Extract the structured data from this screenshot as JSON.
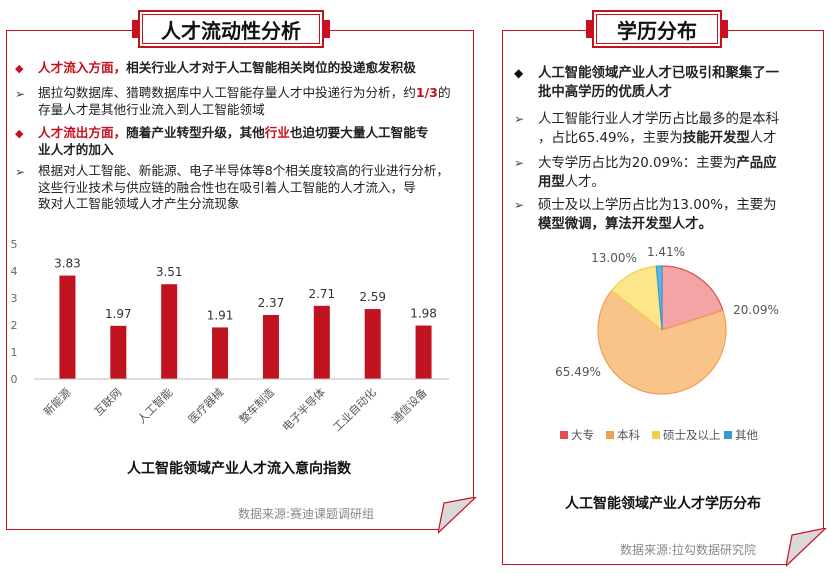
{
  "left": {
    "title": "人才流动性分析",
    "p1": {
      "head": "人才流入方面，",
      "rest": "相关行业人才对于人工智能相关岗位的投递愈发积极"
    },
    "p2": {
      "a": "据拉勾数据库、猎聘数据库中人工智能存量人才中投递行为分析，约",
      "b": "1/3",
      "c": "的",
      "line2": "存量人才是其他行业流入到人工智能领域"
    },
    "p3": {
      "head": "人才流出方面，",
      "a": "随着产业转型升级，其他",
      "b": "行业",
      "c": "也迫切要大量人工智能专",
      "line2": "业人才的加入"
    },
    "p4": {
      "line1": "根据对人工智能、新能源、电子半导体等8个相关度较高的行业进行分析，",
      "line2": "这些行业技术与供应链的融合性也在吸引着人工智能的人才流入，导",
      "line3": "致对人工智能领域人才产生分流现象"
    },
    "source": "数据来源:赛迪课题调研组"
  },
  "right": {
    "title": "学历分布",
    "b1": {
      "line1": "人工智能领域产业人才已吸引和聚集了一",
      "line2": "批中高学历的优质人才"
    },
    "b2": {
      "line1": "人工智能行业人才学历占比最多的是本科",
      "line2a": "，占比65.49%，主要为",
      "line2b": "技能开发型",
      "line2c": "人才"
    },
    "b3": {
      "line1a": "大专学历占比为20.09%：主要为",
      "line1b": "产品应",
      "line2a": "用型",
      "line2b": "人才。"
    },
    "b4": {
      "line1": "硕士及以上学历占比为13.00%，主要为",
      "line2a": "模型微调，算法开发型",
      "line2b": "人才。"
    },
    "source": "数据来源:拉勾数据研究院"
  },
  "chart_data": [
    {
      "type": "bar",
      "title": "人工智能领域产业人才流入意向指数",
      "categories": [
        "新能源",
        "互联网",
        "人工智能",
        "医疗器械",
        "整车制造",
        "电子半导体",
        "工业自动化",
        "通信设备"
      ],
      "values": [
        3.83,
        1.97,
        3.51,
        1.91,
        2.37,
        2.71,
        2.59,
        1.98
      ],
      "value_labels": [
        "3.83",
        "1.97",
        "3.51",
        "1.91",
        "2.37",
        "2.71",
        "2.59",
        "1.98"
      ],
      "yticks": [
        "0",
        "1",
        "2",
        "3",
        "4",
        "5"
      ],
      "ylim": [
        0,
        5
      ],
      "grid": false,
      "colors": {
        "bar": "#c0121f"
      }
    },
    {
      "type": "pie",
      "title": "人工智能领域产业人才学历分布",
      "labels": [
        "大专",
        "本科",
        "硕士及以上",
        "其他"
      ],
      "values": [
        20.09,
        65.49,
        13.0,
        1.41
      ],
      "value_labels": [
        "20.09%",
        "65.49%",
        "13.00%",
        "1.41%"
      ],
      "legend_position": "bottom",
      "colors": [
        "#f4a4a4",
        "#f8c48a",
        "#fde58a",
        "#5bb6e6"
      ],
      "edge_colors": [
        "#e05050",
        "#f0a050",
        "#f3cf4a",
        "#3a98d0"
      ]
    }
  ]
}
